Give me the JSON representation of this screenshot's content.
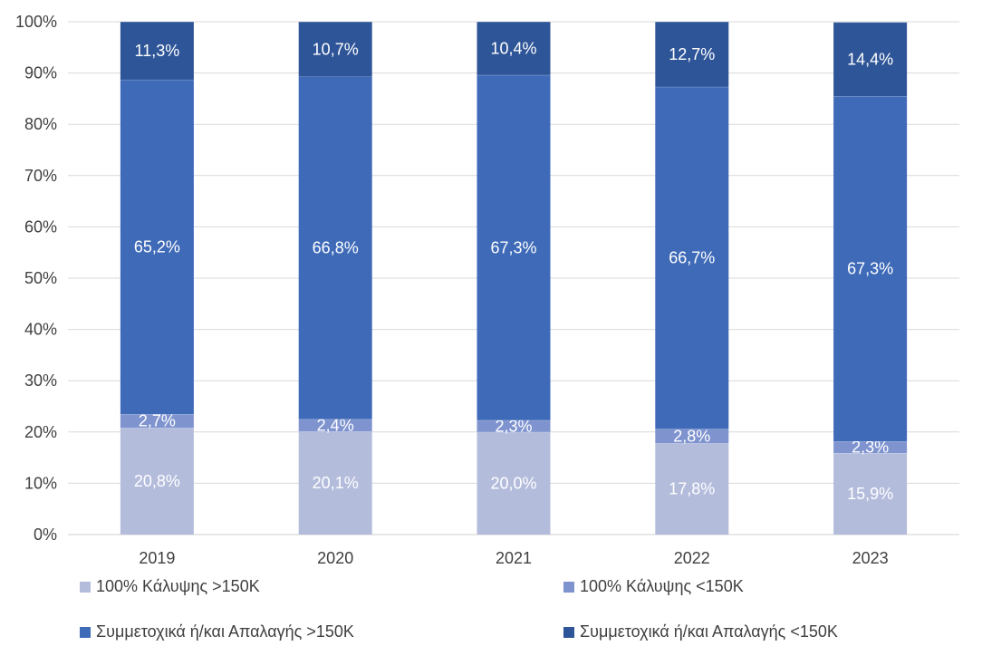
{
  "chart_data": {
    "type": "bar",
    "stacked": true,
    "categories": [
      "2019",
      "2020",
      "2021",
      "2022",
      "2023"
    ],
    "ylim": [
      0,
      100
    ],
    "yticks": [
      "0%",
      "10%",
      "20%",
      "30%",
      "40%",
      "50%",
      "60%",
      "70%",
      "80%",
      "90%",
      "100%"
    ],
    "grid": true,
    "legend_position": "bottom",
    "series": [
      {
        "name": "100% Κάλυψης >150K",
        "color": "#b4bcdc",
        "values": [
          20.8,
          20.1,
          20.0,
          17.8,
          15.9
        ],
        "labels": [
          "20,8%",
          "20,1%",
          "20,0%",
          "17,8%",
          "15,9%"
        ]
      },
      {
        "name": "100% Κάλυψης <150K",
        "color": "#7f93cf",
        "values": [
          2.7,
          2.4,
          2.3,
          2.8,
          2.3
        ],
        "labels": [
          "2,7%",
          "2,4%",
          "2,3%",
          "2,8%",
          "2,3%"
        ]
      },
      {
        "name": "Συμμετοχικά ή/και Απαλαγής >150K",
        "color": "#3e6ab8",
        "values": [
          65.2,
          66.8,
          67.3,
          66.7,
          67.3
        ],
        "labels": [
          "65,2%",
          "66,8%",
          "67,3%",
          "66,7%",
          "67,3%"
        ]
      },
      {
        "name": "Συμμετοχικά ή/και Απαλαγής <150K",
        "color": "#2e5597",
        "values": [
          11.3,
          10.7,
          10.4,
          12.7,
          14.4
        ],
        "labels": [
          "11,3%",
          "10,7%",
          "10,4%",
          "12,7%",
          "14,4%"
        ]
      }
    ]
  }
}
